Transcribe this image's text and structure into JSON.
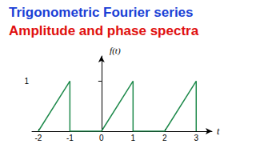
{
  "chart_data": {
    "type": "line",
    "title": "Trigonometric Fourier series",
    "subtitle": "Amplitude and phase spectra",
    "x_label": "t",
    "y_label": "f(t)",
    "x": [
      -2,
      -1,
      -1,
      0,
      1,
      1,
      2,
      3,
      3
    ],
    "values": [
      0,
      1,
      0,
      0,
      1,
      0,
      0,
      1,
      0
    ],
    "color": "#1f8a4c",
    "xlim": [
      -2.2,
      3.5
    ],
    "xticks": [
      -2,
      -1,
      0,
      1,
      2,
      3
    ],
    "ylim": [
      0,
      1.5
    ],
    "yticks": [
      1
    ],
    "grid": false
  }
}
